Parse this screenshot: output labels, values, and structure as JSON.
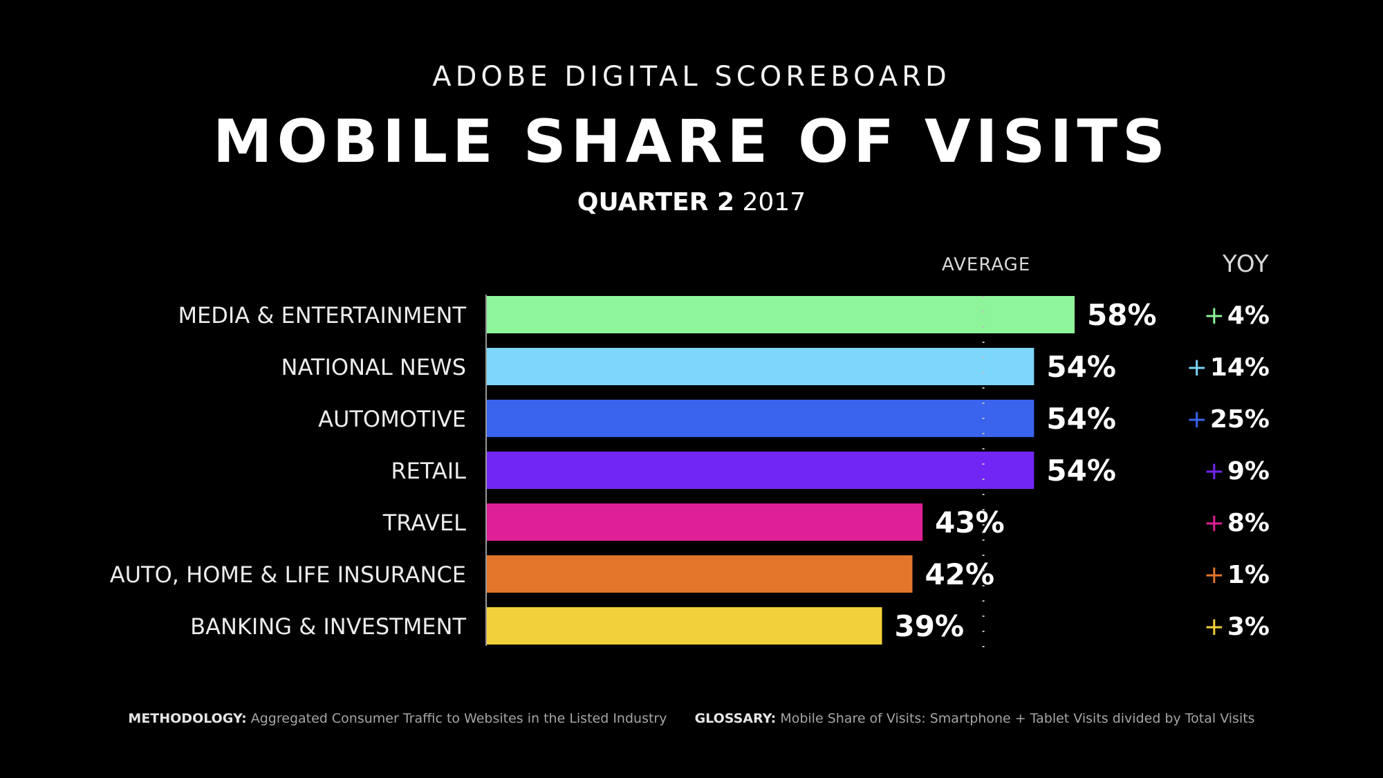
{
  "header": {
    "supertitle": "ADOBE DIGITAL SCOREBOARD",
    "title": "MOBILE SHARE OF VISITS",
    "quarter": "QUARTER 2",
    "year": "2017"
  },
  "columns": {
    "average": "AVERAGE",
    "yoy": "YOY"
  },
  "chart_data": {
    "type": "bar",
    "orientation": "horizontal",
    "title": "MOBILE SHARE OF VISITS",
    "categories": [
      "MEDIA & ENTERTAINMENT",
      "NATIONAL NEWS",
      "AUTOMOTIVE",
      "RETAIL",
      "TRAVEL",
      "AUTO, HOME & LIFE INSURANCE",
      "BANKING & INVESTMENT"
    ],
    "values": [
      58,
      54,
      54,
      54,
      43,
      42,
      39
    ],
    "value_labels": [
      "58%",
      "54%",
      "54%",
      "54%",
      "43%",
      "42%",
      "39%"
    ],
    "yoy_sign": "+",
    "yoy_labels": [
      "4%",
      "14%",
      "25%",
      "9%",
      "8%",
      "1%",
      "3%"
    ],
    "colors": [
      "#8ef59a",
      "#7dd6fb",
      "#3a63ee",
      "#7226f5",
      "#df1f95",
      "#e3752a",
      "#f2d03b"
    ],
    "average_line": 49,
    "xlim": [
      0,
      58
    ],
    "xlabel": "",
    "ylabel": ""
  },
  "footer": {
    "methodology_label": "METHODOLOGY:",
    "methodology_text": "Aggregated Consumer Traffic to Websites in the Listed Industry",
    "glossary_label": "GLOSSARY:",
    "glossary_text": "Mobile Share of Visits: Smartphone + Tablet Visits divided by Total Visits"
  }
}
